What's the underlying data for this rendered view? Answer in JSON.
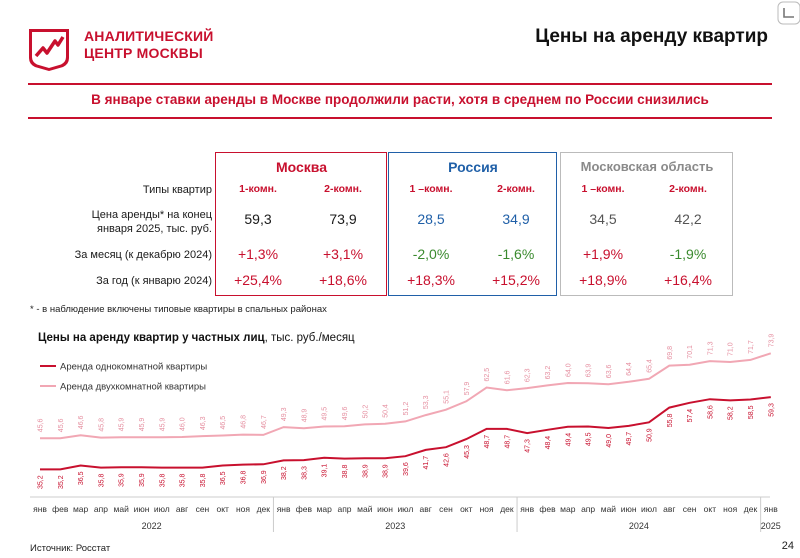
{
  "header": {
    "logo_line1": "АНАЛИТИЧЕСКИЙ",
    "logo_line2": "ЦЕНТР МОСКВЫ",
    "title": "Цены на аренду квартир",
    "subtitle": "В январе ставки аренды в Москве продолжили расти, хотя в среднем по России снизились",
    "accent_color": "#c8102e"
  },
  "table": {
    "regions": [
      {
        "name": "Москва",
        "color": "#c8102e"
      },
      {
        "name": "Россия",
        "color": "#2060a8"
      },
      {
        "name": "Московская область",
        "color": "#9a9a9a"
      }
    ],
    "row_labels": {
      "types": "Типы квартир",
      "price_line1": "Цена аренды* на конец",
      "price_line2": "января 2025, тыс. руб.",
      "month": "За месяц (к декабрю 2024)",
      "year": "За год (к январю 2024)"
    },
    "types": [
      "1-комн.",
      "2-комн.",
      "1 –комн.",
      "2-комн.",
      "1 –комн.",
      "2-комн."
    ],
    "price": [
      "59,3",
      "73,9",
      "28,5",
      "34,9",
      "34,5",
      "42,2"
    ],
    "month": [
      "+1,3%",
      "+3,1%",
      "-2,0%",
      "-1,6%",
      "+1,9%",
      "-1,9%"
    ],
    "year": [
      "+25,4%",
      "+18,6%",
      "+18,3%",
      "+15,2%",
      "+18,9%",
      "+16,4%"
    ]
  },
  "footnote": "* - в наблюдение включены типовые квартиры в спальных районах",
  "chart_title_bold": "Цены на аренду квартир у частных лиц",
  "chart_title_rest": ", тыс. руб./месяц",
  "chart_data": {
    "type": "line",
    "categories": [
      "янв",
      "фев",
      "мар",
      "апр",
      "май",
      "июн",
      "июл",
      "авг",
      "сен",
      "окт",
      "ноя",
      "дек",
      "янв",
      "фев",
      "мар",
      "апр",
      "май",
      "июн",
      "июл",
      "авг",
      "сен",
      "окт",
      "ноя",
      "дек",
      "янв",
      "фев",
      "мар",
      "апр",
      "май",
      "июн",
      "июл",
      "авг",
      "сен",
      "окт",
      "ноя",
      "дек",
      "янв"
    ],
    "years": [
      {
        "label": "2022",
        "months": 12
      },
      {
        "label": "2023",
        "months": 12
      },
      {
        "label": "2024",
        "months": 12
      },
      {
        "label": "2025",
        "months": 1
      }
    ],
    "series": [
      {
        "name": "Аренда однокомнатной квартиры",
        "color": "#c8102e",
        "values": [
          "35,2",
          "35,2",
          "36,5",
          "35,8",
          "35,9",
          "35,9",
          "35,8",
          "35,8",
          "35,8",
          "36,5",
          "36,8",
          "36,9",
          "38,2",
          "38,3",
          "39,1",
          "38,8",
          "38,9",
          "38,9",
          "39,6",
          "41,7",
          "42,6",
          "45,3",
          "48,7",
          "48,7",
          "47,3",
          "48,4",
          "49,4",
          "49,5",
          "49,0",
          "49,7",
          "50,9",
          "55,8",
          "57,4",
          "58,6",
          "58,2",
          "58,5",
          "59,3"
        ]
      },
      {
        "name": "Аренда двухкомнатной квартиры",
        "color": "#f1a7b4",
        "values": [
          "45,6",
          "45,6",
          "46,6",
          "45,8",
          "45,9",
          "45,9",
          "45,9",
          "46,0",
          "46,3",
          "46,5",
          "46,8",
          "46,7",
          "49,3",
          "48,9",
          "49,5",
          "49,6",
          "50,2",
          "50,4",
          "51,2",
          "53,3",
          "55,1",
          "57,9",
          "62,5",
          "61,6",
          "62,3",
          "63,2",
          "64,0",
          "63,9",
          "63,6",
          "64,4",
          "65,4",
          "69,8",
          "70,1",
          "71,3",
          "71,0",
          "71,7",
          "73,9"
        ]
      }
    ],
    "ylim": [
      30,
      80
    ],
    "legend": "top-left"
  },
  "source": "Источник: Росстат",
  "page_number": "24"
}
